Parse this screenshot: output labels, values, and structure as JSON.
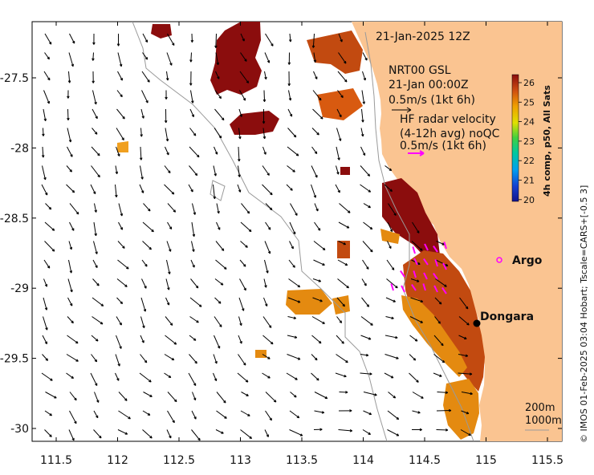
{
  "map": {
    "timestamp": "21-Jan-2025 12Z",
    "model_title": "NRT00 GSL",
    "model_time": "21-Jan 00:00Z",
    "model_scale": "0.5m/s (1kt 6h)",
    "radar_title": "HF radar velocity",
    "radar_subtitle": "(4-12h avg) noQC",
    "radar_scale": "0.5m/s (1kt 6h)",
    "argo_label": "Argo",
    "city_label": "Dongara",
    "contour_label_1": "200m",
    "contour_label_2": "1000m",
    "credit": "© IMOS 01-Feb-2025 03:04 Hobart; Tscale=CARS+[-0.5 3]",
    "colorbar_title": "4h comp, p50, All Sats",
    "colorbar_ticks": [
      "26",
      "25",
      "24",
      "23",
      "22",
      "21",
      "20"
    ],
    "x_ticks": [
      "111.5",
      "112",
      "112.5",
      "113",
      "113.5",
      "114",
      "114.5",
      "115",
      "115.5"
    ],
    "y_ticks": [
      "-27.5",
      "-28",
      "-28.5",
      "-29",
      "-29.5",
      "-30"
    ],
    "colors": {
      "land": "#fac491",
      "sst_dark": "#8b0d0d",
      "sst_mid": "#c24a10",
      "sst_orange": "#e48a10",
      "sst_yellow": "#f2c000",
      "radar_arrow": "#ff00ff",
      "argo_marker": "#ff00ff",
      "city_marker": "#000000"
    }
  }
}
